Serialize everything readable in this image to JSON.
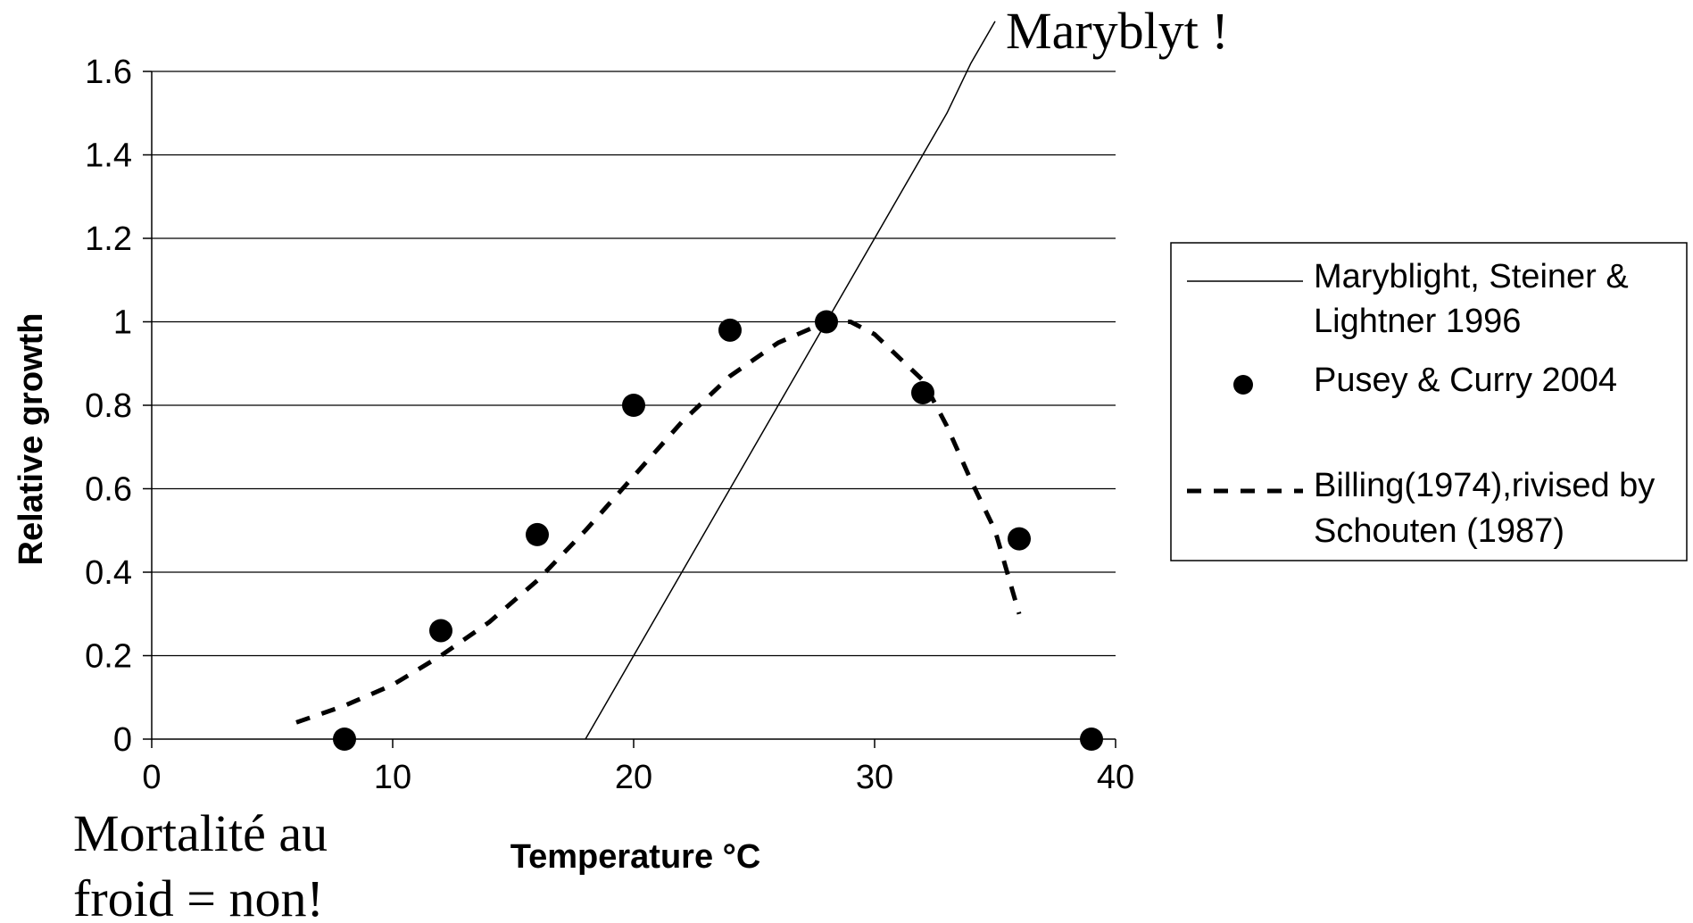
{
  "chart_data": {
    "type": "line",
    "title": "",
    "xlabel": "Temperature °C",
    "ylabel": "Relative growth",
    "xlim": [
      0,
      40
    ],
    "ylim": [
      0,
      1.6
    ],
    "x_ticks": [
      "0",
      "10",
      "20",
      "30",
      "40"
    ],
    "y_ticks": [
      "0",
      "0.2",
      "0.4",
      "0.6",
      "0.8",
      "1",
      "1.2",
      "1.4",
      "1.6"
    ],
    "grid": "horizontal",
    "legend_position": "right",
    "series": [
      {
        "name": "Maryblight, Steiner & Lightner 1996",
        "style": "solid-line",
        "x": [
          18,
          19,
          20,
          22,
          24,
          25,
          26,
          28,
          30,
          32,
          33,
          34,
          35
        ],
        "y": [
          0,
          0.1,
          0.2,
          0.4,
          0.6,
          0.7,
          0.8,
          1.0,
          1.2,
          1.4,
          1.5,
          1.62,
          1.72
        ]
      },
      {
        "name": "Pusey & Curry 2004",
        "style": "markers",
        "x": [
          8,
          12,
          16,
          20,
          24,
          28,
          32,
          36,
          39
        ],
        "y": [
          0,
          0.26,
          0.49,
          0.8,
          0.98,
          1.0,
          0.83,
          0.48,
          0
        ]
      },
      {
        "name": "Billing(1974),rivised by Schouten (1987)",
        "style": "dashed-line",
        "x": [
          6,
          8,
          10,
          12,
          14,
          16,
          18,
          20,
          22,
          24,
          26,
          28,
          29,
          30,
          32,
          33,
          34,
          35,
          36
        ],
        "y": [
          0.04,
          0.08,
          0.13,
          0.2,
          0.28,
          0.38,
          0.5,
          0.63,
          0.76,
          0.87,
          0.95,
          1.0,
          1.0,
          0.97,
          0.86,
          0.75,
          0.62,
          0.5,
          0.3
        ]
      }
    ],
    "legend_labels": {
      "line1": [
        "Maryblight, Steiner &",
        "Lightner 1996"
      ],
      "dots": [
        "Pusey & Curry 2004"
      ],
      "dash": [
        "Billing(1974),rivised by",
        "Schouten (1987)"
      ]
    },
    "annotations": {
      "maryblyt": "Maryblyt !",
      "mortalite_line1": "Mortalité au",
      "mortalite_line2": "froid = non!"
    }
  },
  "colors": {
    "line": "#000000",
    "grid": "#000000",
    "background": "#ffffff"
  }
}
